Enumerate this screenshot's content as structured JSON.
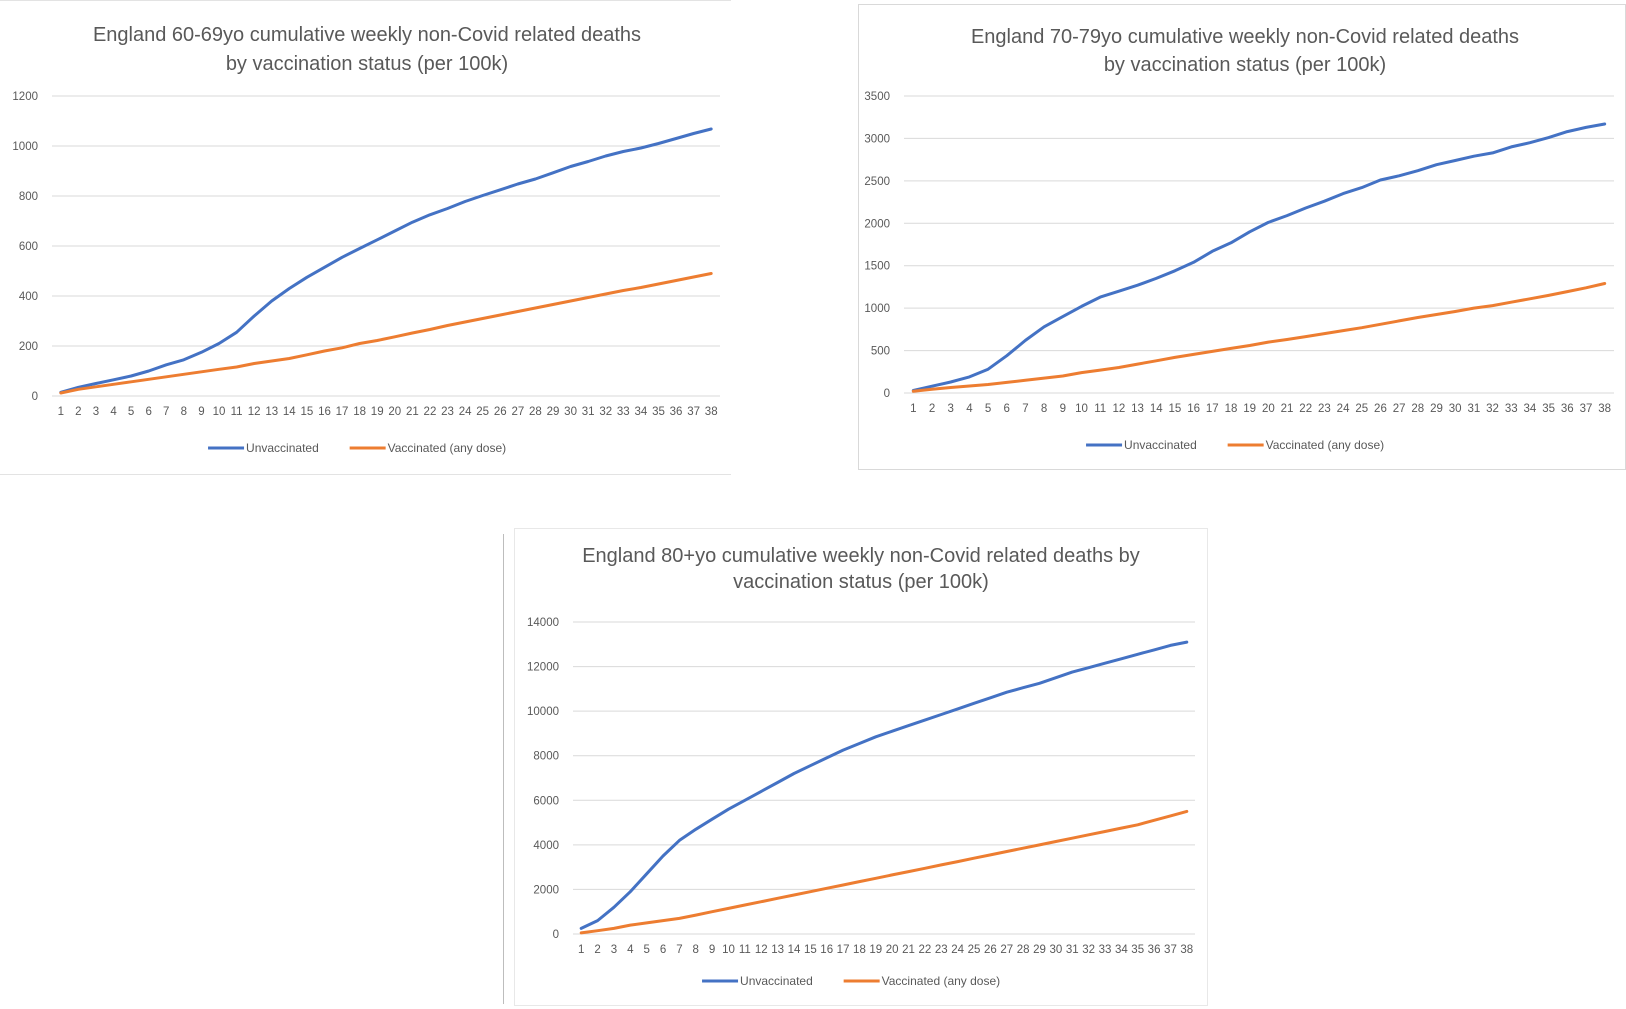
{
  "chart_data": [
    {
      "type": "line",
      "title": [
        "England 60-69yo cumulative weekly non-Covid related deaths",
        "by vaccination status (per 100k)"
      ],
      "categories": [
        "1",
        "2",
        "3",
        "4",
        "5",
        "6",
        "7",
        "8",
        "9",
        "10",
        "11",
        "12",
        "13",
        "14",
        "15",
        "16",
        "17",
        "18",
        "19",
        "20",
        "21",
        "22",
        "23",
        "24",
        "25",
        "26",
        "27",
        "28",
        "29",
        "30",
        "31",
        "32",
        "33",
        "34",
        "35",
        "36",
        "37",
        "38"
      ],
      "ylim": [
        0,
        1200
      ],
      "yticks": [
        0,
        200,
        400,
        600,
        800,
        1000,
        1200
      ],
      "grid": true,
      "legend_position": "bottom",
      "series": [
        {
          "name": "Unvaccinated",
          "color": "#4472c4",
          "values": [
            15,
            35,
            50,
            65,
            80,
            100,
            125,
            145,
            175,
            210,
            255,
            320,
            380,
            430,
            475,
            515,
            555,
            590,
            625,
            660,
            695,
            725,
            750,
            778,
            802,
            825,
            848,
            868,
            893,
            918,
            938,
            960,
            978,
            992,
            1010,
            1030,
            1050,
            1068
          ]
        },
        {
          "name": "Vaccinated (any dose)",
          "color": "#ed7d31",
          "values": [
            12,
            27,
            37,
            47,
            57,
            67,
            77,
            87,
            97,
            107,
            116,
            130,
            140,
            150,
            165,
            180,
            193,
            210,
            222,
            237,
            252,
            266,
            282,
            296,
            310,
            324,
            338,
            352,
            366,
            380,
            394,
            408,
            422,
            434,
            448,
            462,
            476,
            490
          ]
        }
      ]
    },
    {
      "type": "line",
      "title": [
        "England 70-79yo cumulative weekly non-Covid related deaths",
        "by vaccination status (per 100k)"
      ],
      "categories": [
        "1",
        "2",
        "3",
        "4",
        "5",
        "6",
        "7",
        "8",
        "9",
        "10",
        "11",
        "12",
        "13",
        "14",
        "15",
        "16",
        "17",
        "18",
        "19",
        "20",
        "21",
        "22",
        "23",
        "24",
        "25",
        "26",
        "27",
        "28",
        "29",
        "30",
        "31",
        "32",
        "33",
        "34",
        "35",
        "36",
        "37",
        "38"
      ],
      "ylim": [
        0,
        3500
      ],
      "yticks": [
        0,
        500,
        1000,
        1500,
        2000,
        2500,
        3000,
        3500
      ],
      "grid": true,
      "legend_position": "bottom",
      "series": [
        {
          "name": "Unvaccinated",
          "color": "#4472c4",
          "values": [
            30,
            80,
            130,
            190,
            280,
            440,
            620,
            780,
            900,
            1020,
            1130,
            1200,
            1270,
            1350,
            1440,
            1540,
            1670,
            1770,
            1900,
            2010,
            2090,
            2180,
            2260,
            2350,
            2420,
            2510,
            2560,
            2620,
            2690,
            2740,
            2790,
            2830,
            2900,
            2950,
            3010,
            3080,
            3130,
            3170
          ]
        },
        {
          "name": "Vaccinated (any dose)",
          "color": "#ed7d31",
          "values": [
            20,
            45,
            65,
            82,
            100,
            125,
            150,
            175,
            200,
            240,
            270,
            300,
            340,
            380,
            420,
            455,
            490,
            525,
            560,
            600,
            630,
            665,
            700,
            735,
            770,
            810,
            850,
            890,
            925,
            960,
            1000,
            1030,
            1070,
            1110,
            1150,
            1195,
            1240,
            1290
          ]
        }
      ]
    },
    {
      "type": "line",
      "title": [
        "England 80+yo cumulative weekly non-Covid related deaths by",
        "vaccination status (per 100k)"
      ],
      "categories": [
        "1",
        "2",
        "3",
        "4",
        "5",
        "6",
        "7",
        "8",
        "9",
        "10",
        "11",
        "12",
        "13",
        "14",
        "15",
        "16",
        "17",
        "18",
        "19",
        "20",
        "21",
        "22",
        "23",
        "24",
        "25",
        "26",
        "27",
        "28",
        "29",
        "30",
        "31",
        "32",
        "33",
        "34",
        "35",
        "36",
        "37",
        "38"
      ],
      "ylim": [
        0,
        14000
      ],
      "yticks": [
        0,
        2000,
        4000,
        6000,
        8000,
        10000,
        12000,
        14000
      ],
      "grid": true,
      "legend_position": "bottom",
      "series": [
        {
          "name": "Unvaccinated",
          "color": "#4472c4",
          "values": [
            250,
            600,
            1200,
            1900,
            2700,
            3500,
            4200,
            4700,
            5150,
            5600,
            6000,
            6400,
            6800,
            7200,
            7550,
            7900,
            8250,
            8550,
            8850,
            9100,
            9350,
            9600,
            9850,
            10100,
            10350,
            10600,
            10850,
            11050,
            11250,
            11500,
            11750,
            11950,
            12150,
            12350,
            12550,
            12750,
            12950,
            13100
          ]
        },
        {
          "name": "Vaccinated (any dose)",
          "color": "#ed7d31",
          "values": [
            50,
            150,
            250,
            400,
            500,
            600,
            700,
            850,
            1000,
            1150,
            1300,
            1450,
            1600,
            1750,
            1900,
            2050,
            2200,
            2350,
            2500,
            2650,
            2800,
            2950,
            3100,
            3250,
            3400,
            3550,
            3700,
            3850,
            4000,
            4150,
            4300,
            4450,
            4600,
            4750,
            4900,
            5100,
            5300,
            5500
          ]
        }
      ]
    }
  ]
}
